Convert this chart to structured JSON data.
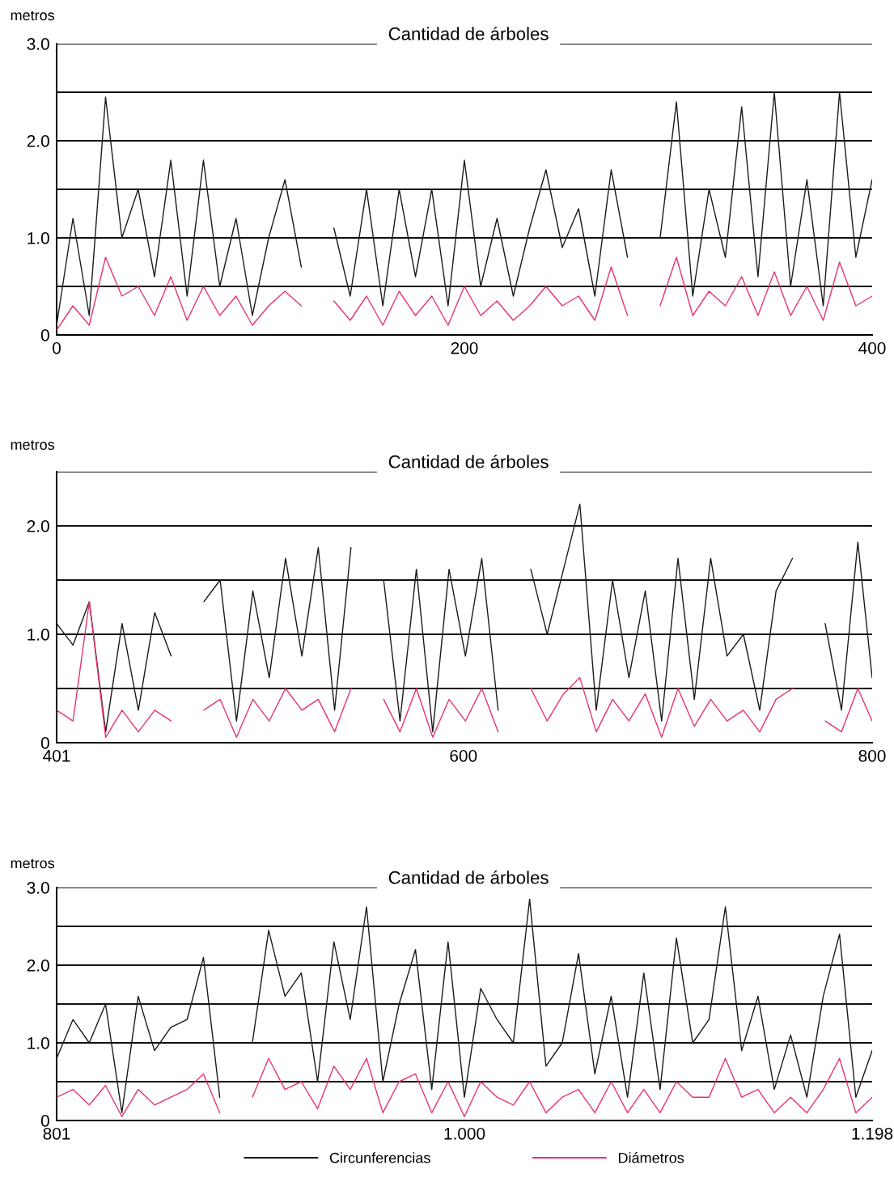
{
  "chart_data": [
    {
      "type": "line",
      "title": "Cantidad de árboles",
      "ylabel": "metros",
      "grid": "y",
      "x": [
        0,
        8,
        16,
        24,
        32,
        40,
        48,
        56,
        64,
        72,
        80,
        88,
        96,
        104,
        112,
        120,
        128,
        136,
        144,
        152,
        160,
        168,
        176,
        184,
        192,
        200,
        208,
        216,
        224,
        232,
        240,
        248,
        256,
        264,
        272,
        280,
        288,
        296,
        304,
        312,
        320,
        328,
        336,
        344,
        352,
        360,
        368,
        376,
        384,
        392,
        400
      ],
      "xlim": [
        0,
        400
      ],
      "xticks": [
        0,
        200,
        400
      ],
      "ylim": [
        0,
        3
      ],
      "yticks": [
        0,
        {
          "value": 0.5,
          "label": null
        },
        {
          "value": 1,
          "label": "1.0"
        },
        {
          "value": 1.5,
          "label": null
        },
        {
          "value": 2,
          "label": "2.0"
        },
        {
          "value": 2.5,
          "label": null
        },
        {
          "value": 3,
          "label": "3.0"
        }
      ],
      "series": [
        {
          "color": "#1a1a1a",
          "values": [
            0.1,
            1.2,
            0.2,
            2.45,
            1.0,
            1.5,
            0.6,
            1.8,
            0.4,
            1.8,
            0.5,
            1.2,
            0.2,
            1.0,
            1.6,
            0.7,
            null,
            1.1,
            0.4,
            1.5,
            0.3,
            1.5,
            0.6,
            1.5,
            0.3,
            1.8,
            0.5,
            1.2,
            0.4,
            1.1,
            1.7,
            0.9,
            1.3,
            0.4,
            1.7,
            0.8,
            null,
            1.0,
            2.4,
            0.4,
            1.5,
            0.8,
            2.35,
            0.6,
            2.5,
            0.5,
            1.6,
            0.3,
            2.5,
            0.8,
            1.6
          ]
        },
        {
          "color": "#e8336b",
          "values": [
            0.05,
            0.3,
            0.1,
            0.8,
            0.4,
            0.5,
            0.2,
            0.6,
            0.15,
            0.5,
            0.2,
            0.4,
            0.1,
            0.3,
            0.45,
            0.3,
            null,
            0.35,
            0.15,
            0.4,
            0.1,
            0.45,
            0.2,
            0.4,
            0.1,
            0.5,
            0.2,
            0.35,
            0.15,
            0.3,
            0.5,
            0.3,
            0.4,
            0.15,
            0.7,
            0.2,
            null,
            0.3,
            0.8,
            0.2,
            0.45,
            0.3,
            0.6,
            0.2,
            0.65,
            0.2,
            0.5,
            0.15,
            0.75,
            0.3,
            0.4
          ]
        }
      ]
    },
    {
      "type": "line",
      "title": "Cantidad de árboles",
      "ylabel": "metros",
      "grid": "y",
      "x": [
        401,
        409,
        417,
        425,
        433,
        441,
        449,
        457,
        465,
        473,
        481,
        489,
        497,
        505,
        513,
        521,
        529,
        537,
        545,
        553,
        561,
        569,
        577,
        585,
        593,
        601,
        609,
        617,
        625,
        633,
        641,
        649,
        657,
        665,
        673,
        681,
        689,
        697,
        705,
        713,
        721,
        729,
        737,
        745,
        753,
        761,
        769,
        777,
        785,
        793,
        800
      ],
      "xlim": [
        401,
        800
      ],
      "xticks": [
        401,
        600,
        800
      ],
      "ylim": [
        0,
        2.5
      ],
      "yticks": [
        0,
        {
          "value": 0.5,
          "label": null
        },
        {
          "value": 1,
          "label": "1.0"
        },
        {
          "value": 1.5,
          "label": null
        },
        {
          "value": 2,
          "label": "2.0"
        },
        {
          "value": 2.5,
          "label": null
        }
      ],
      "series": [
        {
          "color": "#1a1a1a",
          "values": [
            1.1,
            0.9,
            1.3,
            0.1,
            1.1,
            0.3,
            1.2,
            0.8,
            null,
            1.3,
            1.5,
            0.2,
            1.4,
            0.6,
            1.7,
            0.8,
            1.8,
            0.3,
            1.8,
            null,
            1.5,
            0.2,
            1.6,
            0.1,
            1.6,
            0.8,
            1.7,
            0.3,
            null,
            1.6,
            1.0,
            1.6,
            2.2,
            0.3,
            1.5,
            0.6,
            1.4,
            0.2,
            1.7,
            0.4,
            1.7,
            0.8,
            1.0,
            0.3,
            1.4,
            1.7,
            null,
            1.1,
            0.3,
            1.85,
            0.6
          ]
        },
        {
          "color": "#e8336b",
          "values": [
            0.3,
            0.2,
            1.3,
            0.05,
            0.3,
            0.1,
            0.3,
            0.2,
            null,
            0.3,
            0.4,
            0.05,
            0.4,
            0.2,
            0.5,
            0.3,
            0.4,
            0.1,
            0.5,
            null,
            0.4,
            0.1,
            0.5,
            0.05,
            0.4,
            0.2,
            0.5,
            0.1,
            null,
            0.5,
            0.2,
            0.45,
            0.6,
            0.1,
            0.4,
            0.2,
            0.45,
            0.05,
            0.5,
            0.15,
            0.4,
            0.2,
            0.3,
            0.1,
            0.4,
            0.5,
            null,
            0.2,
            0.1,
            0.5,
            0.2
          ]
        }
      ]
    },
    {
      "type": "line",
      "title": "Cantidad de árboles",
      "ylabel": "metros",
      "grid": "y",
      "legend": "bottom",
      "categories": [
        "801",
        null,
        null,
        null,
        null,
        null,
        null,
        null,
        null,
        null,
        null,
        null,
        null,
        null,
        null,
        null,
        null,
        null,
        null,
        null,
        null,
        null,
        null,
        null,
        null,
        "1.000",
        null,
        null,
        null,
        null,
        null,
        null,
        null,
        null,
        null,
        null,
        null,
        null,
        null,
        null,
        null,
        null,
        null,
        null,
        null,
        null,
        null,
        null,
        null,
        null,
        "1.198"
      ],
      "ylim": [
        0,
        3
      ],
      "yticks": [
        0,
        {
          "value": 0.5,
          "label": null
        },
        {
          "value": 1,
          "label": "1.0"
        },
        {
          "value": 1.5,
          "label": null
        },
        {
          "value": 2,
          "label": "2.0"
        },
        {
          "value": 2.5,
          "label": null
        },
        {
          "value": 3,
          "label": "3.0"
        }
      ],
      "series": [
        {
          "name": "Circunferencias",
          "color": "#1a1a1a",
          "values": [
            0.8,
            1.3,
            1.0,
            1.5,
            0.1,
            1.6,
            0.9,
            1.2,
            1.3,
            2.1,
            0.3,
            null,
            1.0,
            2.45,
            1.6,
            1.9,
            0.5,
            2.3,
            1.3,
            2.75,
            0.5,
            1.5,
            2.2,
            0.4,
            2.3,
            0.3,
            1.7,
            1.3,
            1.0,
            2.85,
            0.7,
            1.0,
            2.15,
            0.6,
            1.6,
            0.3,
            1.9,
            0.4,
            2.35,
            1.0,
            1.3,
            2.75,
            0.9,
            1.6,
            0.4,
            1.1,
            0.3,
            1.6,
            2.4,
            0.3,
            0.9
          ]
        },
        {
          "name": "Diámetros",
          "color": "#e8336b",
          "values": [
            0.3,
            0.4,
            0.2,
            0.45,
            0.05,
            0.4,
            0.2,
            0.3,
            0.4,
            0.6,
            0.1,
            null,
            0.3,
            0.8,
            0.4,
            0.5,
            0.15,
            0.7,
            0.4,
            0.8,
            0.1,
            0.5,
            0.6,
            0.1,
            0.5,
            0.05,
            0.5,
            0.3,
            0.2,
            0.5,
            0.1,
            0.3,
            0.4,
            0.1,
            0.5,
            0.1,
            0.4,
            0.1,
            0.5,
            0.3,
            0.3,
            0.8,
            0.3,
            0.4,
            0.1,
            0.3,
            0.1,
            0.4,
            0.8,
            0.1,
            0.3
          ]
        }
      ]
    }
  ]
}
